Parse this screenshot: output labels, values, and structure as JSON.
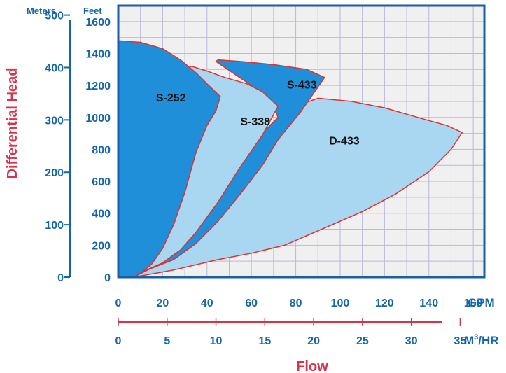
{
  "colors": {
    "axis_blue": "#1565a8",
    "label_red": "#d9334a",
    "plot_bg": "#f0f0f0",
    "grid": "#b8b8dc",
    "frame": "#1a5ea8",
    "curve_outline": "#e03030",
    "dark_fill": "#1e8fd8",
    "light_fill": "#a9d6f0"
  },
  "chart_data": {
    "type": "area",
    "title": "",
    "xlabel": "Flow",
    "ylabel": "Differential Head",
    "left_axis_titles": {
      "meters": "Meters",
      "feet": "Feet"
    },
    "x_units": {
      "gpm": "GPM",
      "m3hr_prefix": "M",
      "m3hr_sup": "3",
      "m3hr_suffix": "/HR"
    },
    "x_gpm": {
      "range": [
        0,
        165
      ],
      "ticks": [
        0,
        20,
        40,
        60,
        80,
        100,
        120,
        140,
        160
      ]
    },
    "x_m3hr": {
      "ticks": [
        0,
        5,
        10,
        15,
        20,
        25,
        30,
        35
      ]
    },
    "y_feet": {
      "range": [
        0,
        1700
      ],
      "ticks": [
        0,
        200,
        400,
        600,
        800,
        1000,
        1200,
        1400,
        1600
      ]
    },
    "y_meters": {
      "ticks": [
        0,
        100,
        200,
        300,
        400,
        500
      ]
    },
    "grid": true,
    "series": [
      {
        "name": "D-433",
        "fill": "light",
        "label_at": [
          95,
          830
        ],
        "points": [
          [
            7,
            0
          ],
          [
            25,
            45
          ],
          [
            45,
            110
          ],
          [
            60,
            150
          ],
          [
            75,
            200
          ],
          [
            90,
            290
          ],
          [
            110,
            410
          ],
          [
            125,
            520
          ],
          [
            140,
            660
          ],
          [
            150,
            800
          ],
          [
            155,
            905
          ],
          [
            148,
            950
          ],
          [
            140,
            980
          ],
          [
            130,
            1020
          ],
          [
            120,
            1060
          ],
          [
            105,
            1100
          ],
          [
            90,
            1120
          ],
          [
            82,
            1080
          ],
          [
            72,
            960
          ],
          [
            62,
            780
          ],
          [
            52,
            600
          ],
          [
            42,
            430
          ],
          [
            32,
            270
          ],
          [
            22,
            140
          ],
          [
            14,
            60
          ]
        ]
      },
      {
        "name": "S-433",
        "fill": "dark",
        "label_at": [
          76,
          1180
        ],
        "points": [
          [
            7,
            0
          ],
          [
            14,
            50
          ],
          [
            25,
            110
          ],
          [
            35,
            210
          ],
          [
            45,
            350
          ],
          [
            55,
            520
          ],
          [
            65,
            700
          ],
          [
            72,
            860
          ],
          [
            82,
            1030
          ],
          [
            93,
            1250
          ],
          [
            85,
            1300
          ],
          [
            70,
            1330
          ],
          [
            55,
            1350
          ],
          [
            45,
            1360
          ],
          [
            44,
            1350
          ],
          [
            60,
            1200
          ],
          [
            70,
            1070
          ],
          [
            72,
            1000
          ],
          [
            67,
            930
          ],
          [
            55,
            740
          ],
          [
            42,
            530
          ],
          [
            32,
            330
          ],
          [
            22,
            160
          ],
          [
            14,
            60
          ]
        ]
      },
      {
        "name": "S-338",
        "fill": "light",
        "label_at": [
          55,
          950
        ],
        "points": [
          [
            7,
            0
          ],
          [
            12,
            40
          ],
          [
            20,
            90
          ],
          [
            28,
            170
          ],
          [
            35,
            280
          ],
          [
            45,
            470
          ],
          [
            55,
            690
          ],
          [
            65,
            890
          ],
          [
            72,
            1070
          ],
          [
            65,
            1160
          ],
          [
            58,
            1210
          ],
          [
            48,
            1250
          ],
          [
            40,
            1290
          ],
          [
            33,
            1320
          ],
          [
            30,
            1300
          ],
          [
            33,
            1260
          ],
          [
            43,
            1150
          ],
          [
            42,
            1050
          ],
          [
            38,
            930
          ],
          [
            33,
            740
          ],
          [
            28,
            560
          ],
          [
            22,
            320
          ],
          [
            16,
            140
          ],
          [
            11,
            50
          ]
        ]
      },
      {
        "name": "S-252",
        "fill": "dark",
        "label_at": [
          17,
          1100
        ],
        "points": [
          [
            0,
            1480
          ],
          [
            10,
            1470
          ],
          [
            20,
            1430
          ],
          [
            28,
            1360
          ],
          [
            35,
            1280
          ],
          [
            40,
            1210
          ],
          [
            46,
            1130
          ],
          [
            44,
            1040
          ],
          [
            40,
            950
          ],
          [
            35,
            780
          ],
          [
            30,
            530
          ],
          [
            25,
            330
          ],
          [
            20,
            180
          ],
          [
            15,
            80
          ],
          [
            10,
            25
          ],
          [
            7,
            0
          ],
          [
            0,
            0
          ]
        ]
      }
    ]
  }
}
